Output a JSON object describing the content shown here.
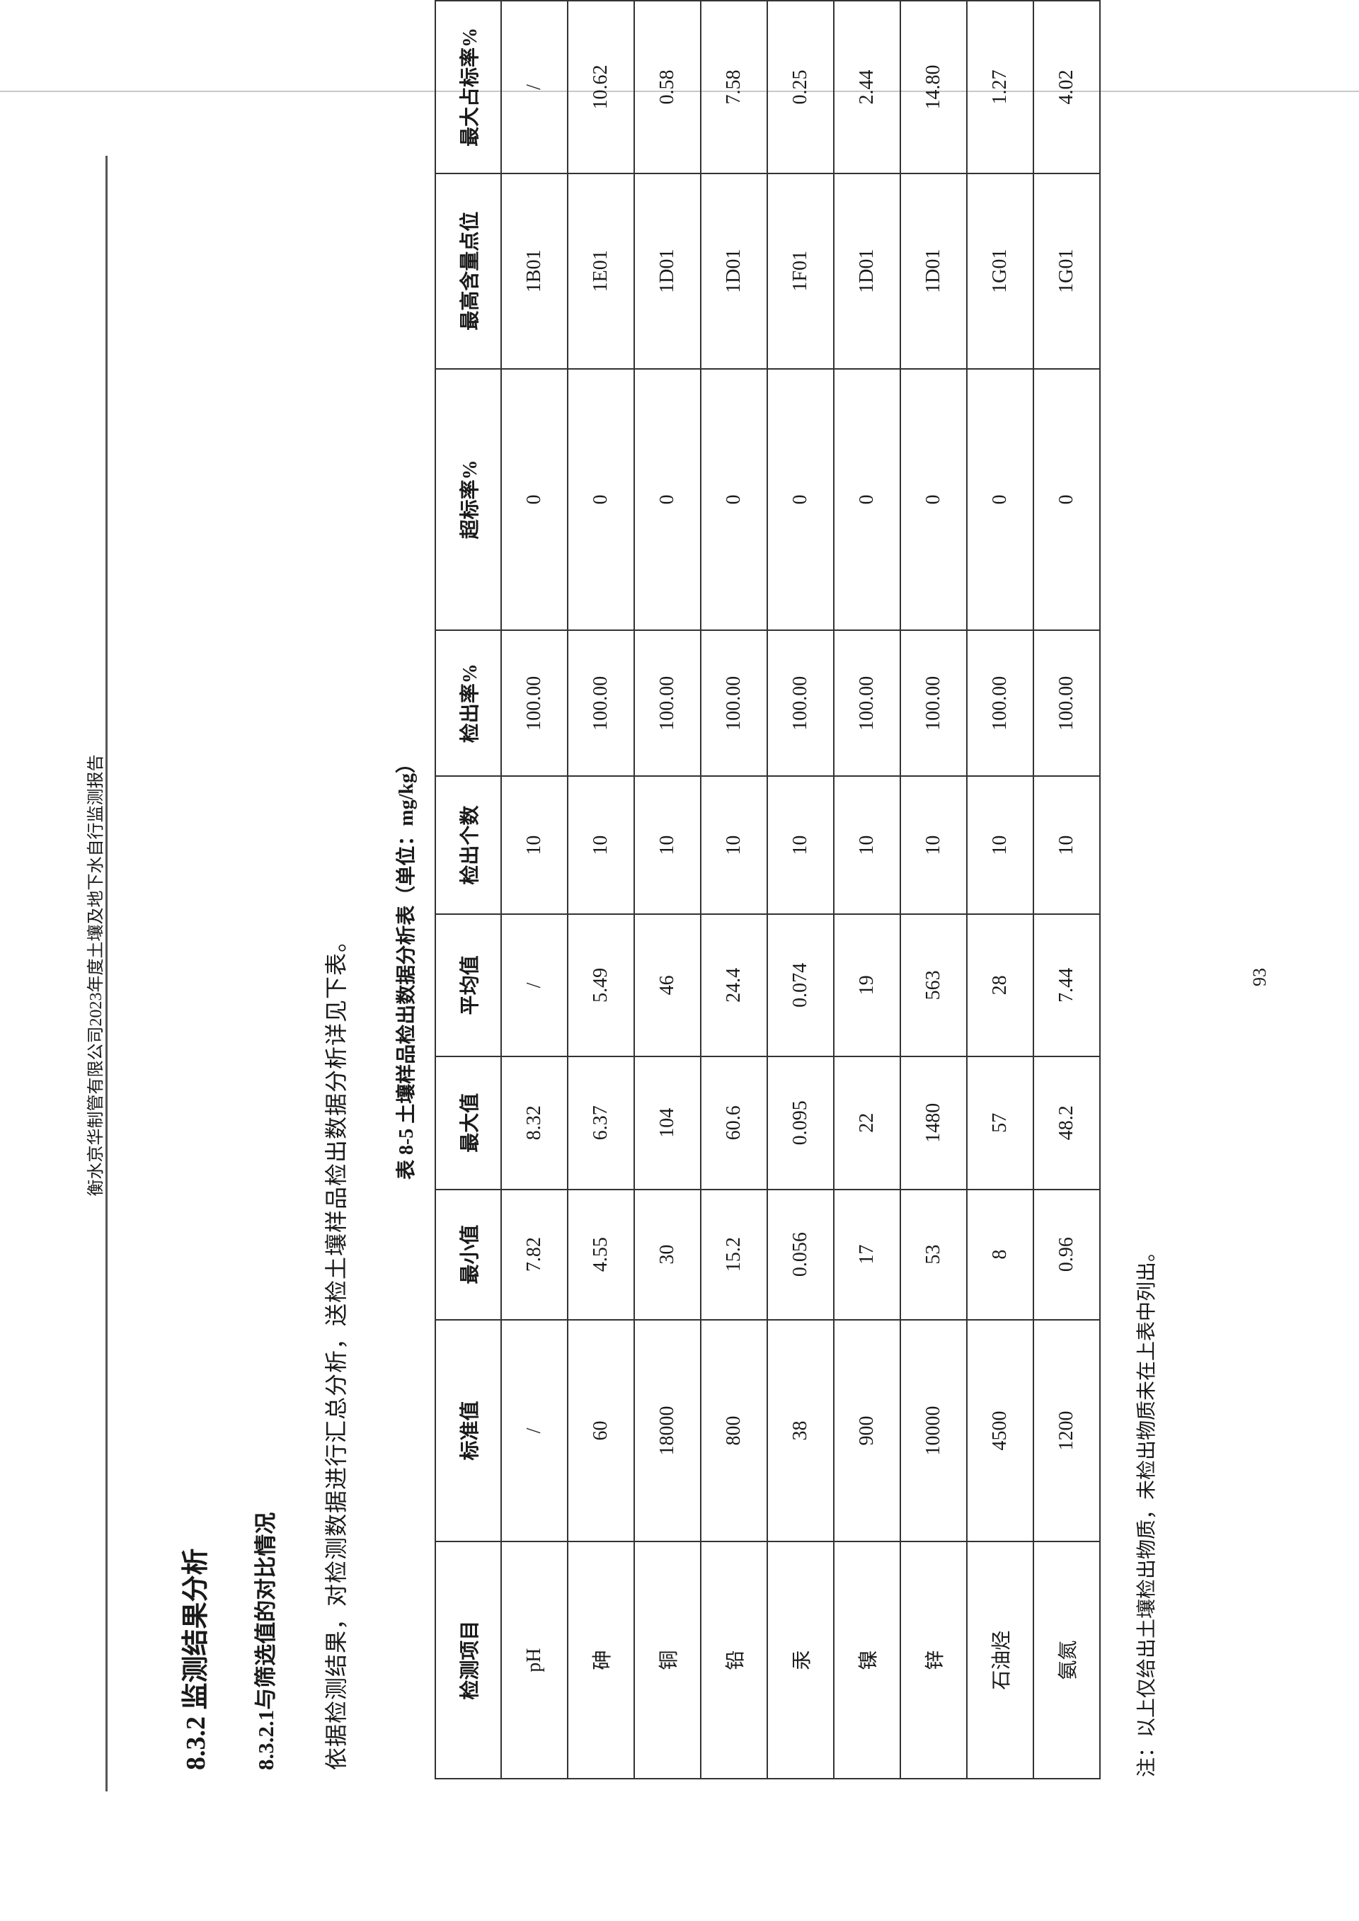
{
  "header": "衡水京华制管有限公司2023年度土壤及地下水自行监测报告",
  "section_heading": "8.3.2  监测结果分析",
  "subsection_heading": "8.3.2.1与筛选值的对比情况",
  "paragraph": "依据检测结果，对检测数据进行汇总分析，送检土壤样品检出数据分析详见下表。",
  "table_caption": "表 8-5   土壤样品检出数据分析表（单位：mg/kg）",
  "table": {
    "columns": [
      "检测项目",
      "标准值",
      "最小值",
      "最大值",
      "平均值",
      "检出个数",
      "检出率%",
      "超标率%",
      "最高含量点位",
      "最大占标率%"
    ],
    "rows": [
      [
        "pH",
        "/",
        "7.82",
        "8.32",
        "/",
        "10",
        "100.00",
        "0",
        "1B01",
        "/"
      ],
      [
        "砷",
        "60",
        "4.55",
        "6.37",
        "5.49",
        "10",
        "100.00",
        "0",
        "1E01",
        "10.62"
      ],
      [
        "铜",
        "18000",
        "30",
        "104",
        "46",
        "10",
        "100.00",
        "0",
        "1D01",
        "0.58"
      ],
      [
        "铅",
        "800",
        "15.2",
        "60.6",
        "24.4",
        "10",
        "100.00",
        "0",
        "1D01",
        "7.58"
      ],
      [
        "汞",
        "38",
        "0.056",
        "0.095",
        "0.074",
        "10",
        "100.00",
        "0",
        "1F01",
        "0.25"
      ],
      [
        "镍",
        "900",
        "17",
        "22",
        "19",
        "10",
        "100.00",
        "0",
        "1D01",
        "2.44"
      ],
      [
        "锌",
        "10000",
        "53",
        "1480",
        "563",
        "10",
        "100.00",
        "0",
        "1D01",
        "14.80"
      ],
      [
        "石油烃",
        "4500",
        "8",
        "57",
        "28",
        "10",
        "100.00",
        "0",
        "1G01",
        "1.27"
      ],
      [
        "氨氮",
        "1200",
        "0.96",
        "48.2",
        "7.44",
        "10",
        "100.00",
        "0",
        "1G01",
        "4.02"
      ]
    ]
  },
  "note": "注：以上仅给出土壤检出物质，未检出物质未在上表中列出。",
  "page_number": "93"
}
